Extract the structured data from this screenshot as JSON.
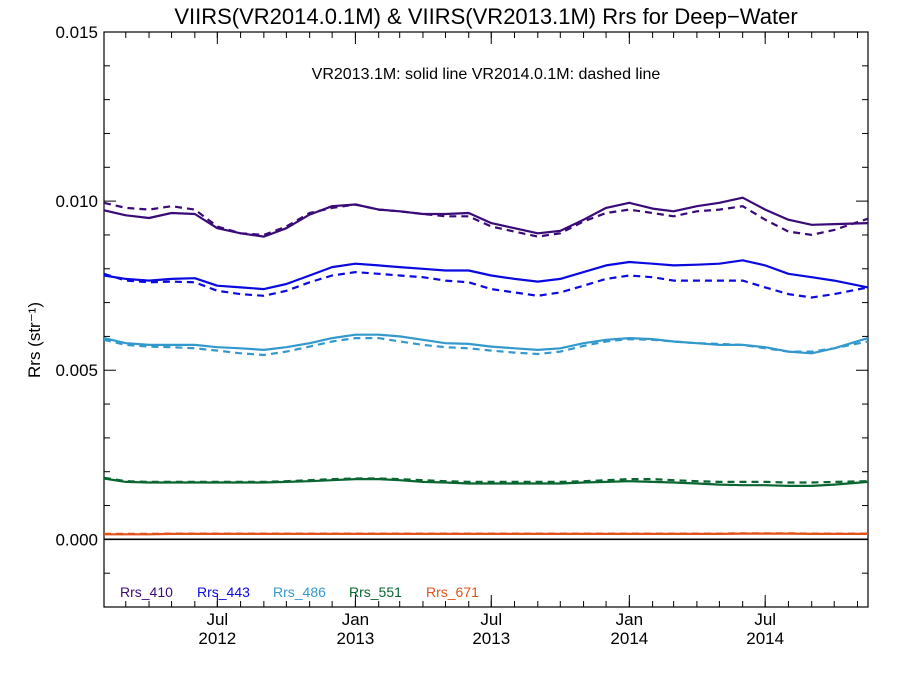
{
  "chart_data": {
    "type": "line",
    "title": "VIIRS(VR2014.0.1M) & VIIRS(VR2013.1M)  Rrs for Deep−Water",
    "annotation": "VR2013.1M: solid line   VR2014.0.1M: dashed line",
    "ylabel": "Rrs (str⁻¹)",
    "xlabel": "",
    "xlim": [
      "2012-02-01",
      "2014-11-15"
    ],
    "ylim": [
      -0.002,
      0.015
    ],
    "y_ticks": [
      "0.000",
      "0.005",
      "0.010",
      "0.015"
    ],
    "y_tick_values": [
      0.0,
      0.005,
      0.01,
      0.015
    ],
    "x_ticks": [
      {
        "date": "2012-07-01",
        "month": "Jul",
        "year": "2012"
      },
      {
        "date": "2013-01-01",
        "month": "Jan",
        "year": "2013"
      },
      {
        "date": "2013-07-01",
        "month": "Jul",
        "year": "2013"
      },
      {
        "date": "2014-01-01",
        "month": "Jan",
        "year": "2014"
      },
      {
        "date": "2014-07-01",
        "month": "Jul",
        "year": "2014"
      }
    ],
    "x": [
      "2012-02-01",
      "2012-03-01",
      "2012-04-01",
      "2012-05-01",
      "2012-06-01",
      "2012-07-01",
      "2012-08-01",
      "2012-09-01",
      "2012-10-01",
      "2012-11-01",
      "2012-12-01",
      "2013-01-01",
      "2013-02-01",
      "2013-03-01",
      "2013-04-01",
      "2013-05-01",
      "2013-06-01",
      "2013-07-01",
      "2013-08-01",
      "2013-09-01",
      "2013-10-01",
      "2013-11-01",
      "2013-12-01",
      "2014-01-01",
      "2014-02-01",
      "2014-03-01",
      "2014-04-01",
      "2014-05-01",
      "2014-06-01",
      "2014-07-01",
      "2014-08-01",
      "2014-09-01",
      "2014-10-01",
      "2014-11-15"
    ],
    "series": [
      {
        "name": "Rrs_410",
        "color": "#3a0a78",
        "style": "solid",
        "values": [
          0.00973,
          0.00958,
          0.0095,
          0.00965,
          0.00962,
          0.0092,
          0.00905,
          0.00895,
          0.0092,
          0.0096,
          0.00985,
          0.0099,
          0.00975,
          0.0097,
          0.00962,
          0.00962,
          0.00965,
          0.00935,
          0.0092,
          0.00905,
          0.00912,
          0.00945,
          0.0098,
          0.00995,
          0.00978,
          0.0097,
          0.00985,
          0.00995,
          0.0101,
          0.00975,
          0.00945,
          0.0093,
          0.00932,
          0.00935
        ]
      },
      {
        "name": "Rrs_410",
        "color": "#3a0a78",
        "style": "dashed",
        "values": [
          0.00995,
          0.0098,
          0.00975,
          0.00985,
          0.00975,
          0.00925,
          0.00905,
          0.009,
          0.00925,
          0.00965,
          0.0098,
          0.0099,
          0.00975,
          0.0097,
          0.00962,
          0.00955,
          0.00955,
          0.00925,
          0.0091,
          0.00895,
          0.00905,
          0.0094,
          0.00965,
          0.00975,
          0.00965,
          0.00955,
          0.0097,
          0.00975,
          0.00985,
          0.00945,
          0.0091,
          0.009,
          0.00915,
          0.00948
        ]
      },
      {
        "name": "Rrs_443",
        "color": "#0a0ae0",
        "style": "solid",
        "values": [
          0.0078,
          0.0077,
          0.00765,
          0.0077,
          0.00772,
          0.0075,
          0.00745,
          0.0074,
          0.00755,
          0.0078,
          0.00805,
          0.00815,
          0.0081,
          0.00805,
          0.008,
          0.00795,
          0.00795,
          0.0078,
          0.0077,
          0.00762,
          0.0077,
          0.0079,
          0.0081,
          0.0082,
          0.00815,
          0.0081,
          0.00812,
          0.00815,
          0.00825,
          0.0081,
          0.00785,
          0.00775,
          0.00765,
          0.00745
        ]
      },
      {
        "name": "Rrs_443",
        "color": "#0a0ae0",
        "style": "dashed",
        "values": [
          0.00785,
          0.00765,
          0.0076,
          0.00762,
          0.0076,
          0.00735,
          0.00725,
          0.0072,
          0.00735,
          0.0076,
          0.0078,
          0.0079,
          0.00785,
          0.0078,
          0.00775,
          0.00765,
          0.0076,
          0.0074,
          0.0073,
          0.0072,
          0.0073,
          0.0075,
          0.0077,
          0.0078,
          0.00775,
          0.00765,
          0.00765,
          0.00765,
          0.00765,
          0.00745,
          0.00725,
          0.00715,
          0.00725,
          0.00745
        ]
      },
      {
        "name": "Rrs_486",
        "color": "#3399cc",
        "style": "solid",
        "values": [
          0.00595,
          0.0058,
          0.00575,
          0.00575,
          0.00575,
          0.00568,
          0.00565,
          0.0056,
          0.00568,
          0.0058,
          0.00595,
          0.00605,
          0.00605,
          0.006,
          0.0059,
          0.0058,
          0.00578,
          0.0057,
          0.00565,
          0.0056,
          0.00565,
          0.0058,
          0.0059,
          0.00595,
          0.00592,
          0.00585,
          0.0058,
          0.00575,
          0.00575,
          0.00568,
          0.00555,
          0.0055,
          0.00565,
          0.00595
        ]
      },
      {
        "name": "Rrs_486",
        "color": "#3399cc",
        "style": "dashed",
        "values": [
          0.0059,
          0.00575,
          0.0057,
          0.00568,
          0.00565,
          0.00558,
          0.0055,
          0.00545,
          0.00555,
          0.0057,
          0.00585,
          0.00595,
          0.00595,
          0.00585,
          0.00575,
          0.00568,
          0.00565,
          0.00558,
          0.00552,
          0.00548,
          0.00555,
          0.00572,
          0.00585,
          0.00592,
          0.0059,
          0.00585,
          0.0058,
          0.00578,
          0.00575,
          0.00565,
          0.00555,
          0.00555,
          0.00565,
          0.00585
        ]
      },
      {
        "name": "Rrs_551",
        "color": "#0a6630",
        "style": "solid",
        "values": [
          0.0018,
          0.0017,
          0.00168,
          0.00168,
          0.00168,
          0.00168,
          0.00168,
          0.00168,
          0.0017,
          0.00172,
          0.00175,
          0.00178,
          0.00178,
          0.00175,
          0.0017,
          0.00168,
          0.00165,
          0.00165,
          0.00165,
          0.00165,
          0.00165,
          0.00168,
          0.0017,
          0.00172,
          0.0017,
          0.00168,
          0.00165,
          0.00162,
          0.0016,
          0.0016,
          0.00158,
          0.00158,
          0.00162,
          0.0017
        ]
      },
      {
        "name": "Rrs_551",
        "color": "#0a6630",
        "style": "dashed",
        "values": [
          0.00182,
          0.00172,
          0.0017,
          0.0017,
          0.0017,
          0.0017,
          0.0017,
          0.0017,
          0.00172,
          0.00175,
          0.00178,
          0.0018,
          0.0018,
          0.00178,
          0.00175,
          0.00172,
          0.0017,
          0.0017,
          0.0017,
          0.0017,
          0.0017,
          0.00172,
          0.00175,
          0.00178,
          0.00178,
          0.00175,
          0.00172,
          0.0017,
          0.0017,
          0.0017,
          0.00168,
          0.00168,
          0.0017,
          0.00172
        ]
      },
      {
        "name": "Rrs_671",
        "color": "#e0521a",
        "style": "solid",
        "values": [
          0.00015,
          0.00015,
          0.00015,
          0.00016,
          0.00016,
          0.00016,
          0.00016,
          0.00016,
          0.00016,
          0.00016,
          0.00016,
          0.00016,
          0.00016,
          0.00016,
          0.00016,
          0.00016,
          0.00016,
          0.00016,
          0.00016,
          0.00016,
          0.00016,
          0.00016,
          0.00016,
          0.00016,
          0.00016,
          0.00016,
          0.00016,
          0.00016,
          0.00017,
          0.00017,
          0.00017,
          0.00016,
          0.00016,
          0.00016
        ]
      },
      {
        "name": "Rrs_671",
        "color": "#e0521a",
        "style": "dashed",
        "values": [
          0.00016,
          0.00016,
          0.00016,
          0.00017,
          0.00017,
          0.00017,
          0.00017,
          0.00017,
          0.00017,
          0.00017,
          0.00017,
          0.00017,
          0.00017,
          0.00017,
          0.00017,
          0.00017,
          0.00017,
          0.00017,
          0.00017,
          0.00017,
          0.00017,
          0.00017,
          0.00017,
          0.00017,
          0.00017,
          0.00017,
          0.00017,
          0.00017,
          0.00018,
          0.00018,
          0.00018,
          0.00017,
          0.00017,
          0.00017
        ]
      }
    ],
    "zero_line": {
      "value": 0.0,
      "color": "#000000"
    },
    "legend": [
      {
        "label": "Rrs_410",
        "color": "#3a0a78"
      },
      {
        "label": "Rrs_443",
        "color": "#0a0ae0"
      },
      {
        "label": "Rrs_486",
        "color": "#3399cc"
      },
      {
        "label": "Rrs_551",
        "color": "#0a6630"
      },
      {
        "label": "Rrs_671",
        "color": "#e0521a"
      }
    ],
    "legend_position": "bottom-left",
    "grid": false
  }
}
